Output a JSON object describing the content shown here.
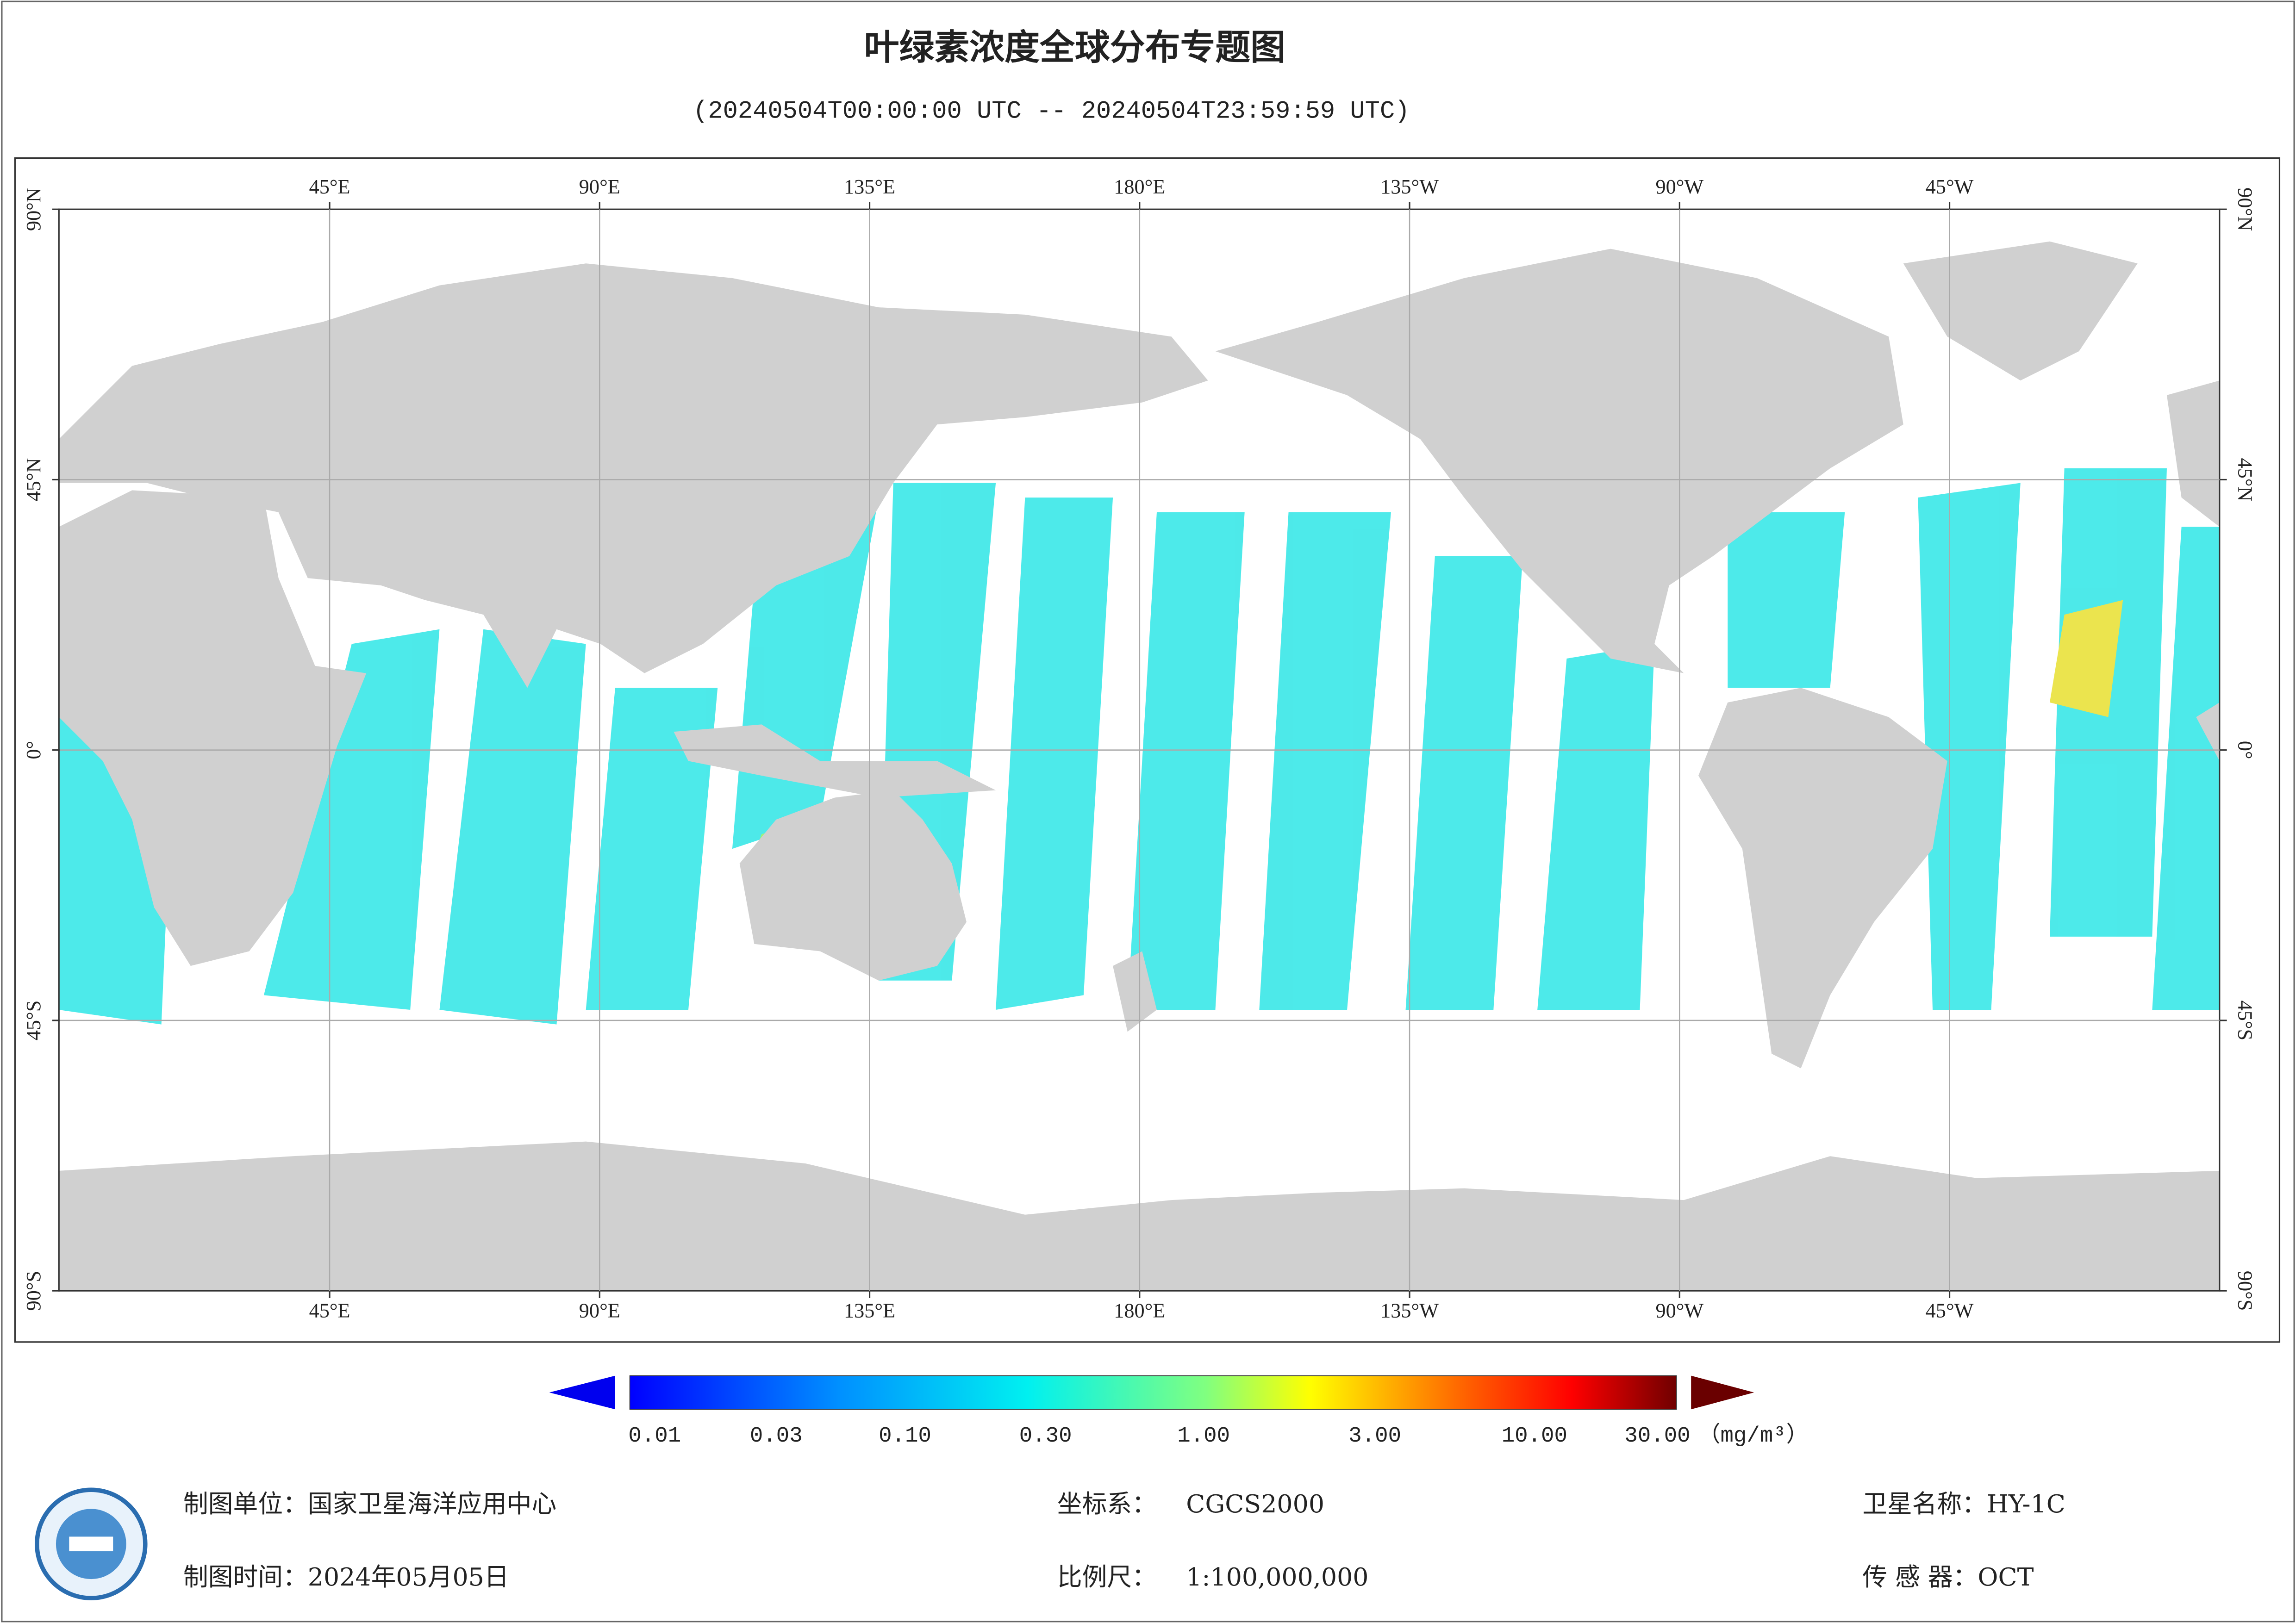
{
  "title": "叶绿素浓度全球分布专题图",
  "subtitle": "(20240504T00:00:00 UTC -- 20240504T23:59:59 UTC)",
  "map": {
    "longitude_labels": [
      "45°E",
      "90°E",
      "135°E",
      "180°E",
      "135°W",
      "90°W",
      "45°W"
    ],
    "latitude_labels": [
      "90°N",
      "45°N",
      "0°",
      "45°S",
      "90°S"
    ]
  },
  "colorbar": {
    "labels": [
      "0.01",
      "0.03",
      "0.10",
      "0.30",
      "1.00",
      "3.00",
      "10.00",
      "30.00"
    ],
    "unit": "（mg/m³）"
  },
  "footer": [
    {
      "label": "制图单位：",
      "value": "国家卫星海洋应用中心"
    },
    {
      "label": "制图时间：",
      "value": "2024年05月05日"
    },
    {
      "label": "坐标系：",
      "value": "CGCS2000"
    },
    {
      "label": "比例尺：",
      "value": "1:100,000,000"
    },
    {
      "label": "卫星名称：",
      "value": "HY-1C"
    },
    {
      "label": "传 感 器：",
      "value": "OCT"
    }
  ]
}
